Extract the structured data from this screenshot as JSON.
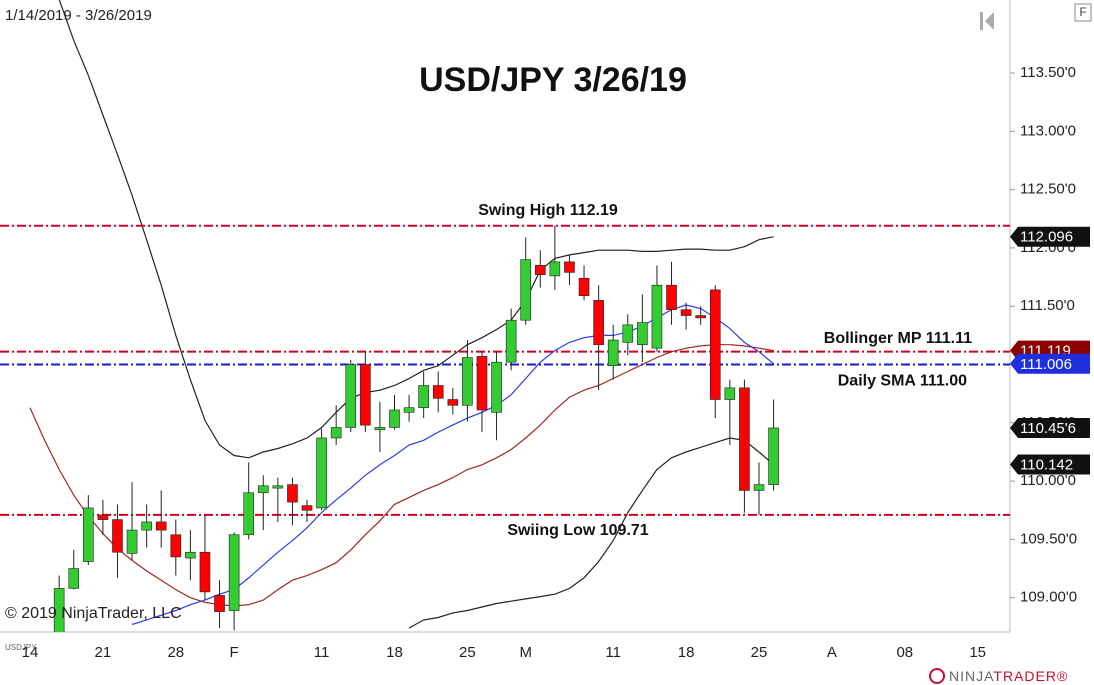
{
  "chart_data": {
    "type": "candlestick",
    "title": "USD/JPY 3/26/19",
    "date_range": "1/14/2019 - 3/26/2019",
    "copyright": "© 2019 NinjaTrader, LLC",
    "symbol": "USDJPY",
    "panel_button": "F",
    "brand": "NINJA",
    "brand_accent": "TRADER®",
    "up_color": "#33cc33",
    "down_color": "#ff0000",
    "ylim": [
      108.706,
      114.126
    ],
    "yticks": [
      {
        "value": 113.5,
        "label": "113.50'0"
      },
      {
        "value": 113,
        "label": "113.00'0"
      },
      {
        "value": 112.5,
        "label": "112.50'0"
      },
      {
        "value": 112,
        "label": "112.00'0"
      },
      {
        "value": 111.5,
        "label": "111.50'0"
      },
      {
        "value": 111,
        "label": "111.00'0"
      },
      {
        "value": 110.5,
        "label": "110.50'0"
      },
      {
        "value": 110,
        "label": "110.00'0"
      },
      {
        "value": 109.5,
        "label": "109.50'0"
      },
      {
        "value": 109,
        "label": "109.00'0"
      }
    ],
    "categories": [
      "14",
      null,
      null,
      null,
      null,
      "21",
      null,
      null,
      null,
      null,
      "28",
      null,
      null,
      null,
      "F",
      null,
      null,
      null,
      null,
      null,
      "11",
      null,
      null,
      null,
      null,
      "18",
      null,
      null,
      null,
      null,
      "25",
      null,
      null,
      null,
      "M",
      null,
      null,
      null,
      null,
      null,
      "11",
      null,
      null,
      null,
      null,
      "18",
      null,
      null,
      null,
      null,
      "25",
      null,
      null,
      null,
      null,
      "A",
      null,
      null,
      null,
      null,
      "08",
      null,
      null,
      null,
      null,
      "15"
    ],
    "ohlc": {
      "open": [
        null,
        null,
        108.65,
        109.08,
        109.31,
        109.71,
        109.67,
        109.38,
        109.58,
        109.65,
        109.54,
        109.34,
        109.39,
        109.02,
        108.89,
        109.54,
        109.9,
        109.94,
        109.97,
        109.79,
        109.77,
        110.37,
        110.46,
        111.0,
        110.44,
        110.46,
        110.59,
        110.63,
        110.82,
        110.7,
        110.65,
        111.07,
        110.59,
        111.02,
        111.38,
        111.85,
        111.76,
        111.88,
        111.74,
        111.55,
        110.99,
        111.19,
        111.17,
        111.14,
        111.68,
        111.47,
        111.42,
        111.64,
        110.7,
        110.8,
        109.92,
        109.97,
        null,
        null,
        null,
        null,
        null,
        null,
        null,
        null,
        null,
        null,
        null,
        null,
        null,
        null
      ],
      "high": [
        null,
        null,
        109.19,
        109.41,
        109.88,
        109.84,
        109.8,
        109.99,
        109.8,
        109.92,
        109.67,
        109.58,
        109.71,
        109.15,
        109.56,
        110.16,
        110.05,
        110.03,
        110.03,
        109.84,
        110.45,
        110.65,
        111.04,
        111.12,
        110.68,
        110.74,
        110.74,
        110.94,
        110.94,
        110.8,
        111.21,
        111.11,
        111.11,
        111.48,
        112.09,
        111.98,
        112.19,
        111.94,
        111.85,
        111.68,
        111.34,
        111.43,
        111.6,
        111.85,
        111.88,
        111.53,
        111.5,
        111.68,
        110.87,
        110.87,
        110.16,
        110.7,
        null,
        null,
        null,
        null,
        null,
        null,
        null,
        null,
        null,
        null,
        null,
        null,
        null,
        null
      ],
      "low": [
        null,
        null,
        108.55,
        109.07,
        109.28,
        109.54,
        109.17,
        109.32,
        109.43,
        109.43,
        109.19,
        109.15,
        108.98,
        108.74,
        108.72,
        109.5,
        109.58,
        109.65,
        109.62,
        109.65,
        109.75,
        110.31,
        110.42,
        110.42,
        110.25,
        110.44,
        110.51,
        110.54,
        110.59,
        110.57,
        110.51,
        110.42,
        110.35,
        110.95,
        111.34,
        111.66,
        111.64,
        111.68,
        111.55,
        110.78,
        110.87,
        111.08,
        111.02,
        111.11,
        111.34,
        111.3,
        111.34,
        110.54,
        110.31,
        109.73,
        109.71,
        109.92,
        null,
        null,
        null,
        null,
        null,
        null,
        null,
        null,
        null,
        null,
        null,
        null,
        null,
        null
      ],
      "close": [
        null,
        null,
        109.08,
        109.25,
        109.77,
        109.67,
        109.39,
        109.58,
        109.65,
        109.58,
        109.35,
        109.39,
        109.05,
        108.88,
        109.54,
        109.9,
        109.96,
        109.96,
        109.82,
        109.75,
        110.37,
        110.46,
        111.0,
        110.48,
        110.46,
        110.61,
        110.63,
        110.82,
        110.71,
        110.65,
        111.06,
        110.61,
        111.02,
        111.38,
        111.9,
        111.77,
        111.88,
        111.79,
        111.59,
        111.17,
        111.21,
        111.34,
        111.36,
        111.68,
        111.47,
        111.42,
        111.4,
        110.7,
        110.8,
        109.92,
        109.97,
        110.456,
        null,
        null,
        null,
        null,
        null,
        null,
        null,
        null,
        null,
        null,
        null,
        null,
        null,
        null
      ]
    },
    "lines": [
      {
        "color": "#222222",
        "values": [
          null,
          null,
          114.13,
          113.78,
          113.48,
          113.14,
          112.8,
          112.45,
          112.07,
          111.68,
          111.25,
          110.87,
          110.52,
          110.31,
          110.22,
          110.2,
          110.25,
          110.28,
          110.32,
          110.37,
          110.46,
          110.59,
          110.71,
          110.76,
          110.78,
          110.82,
          110.88,
          110.95,
          110.99,
          111.08,
          111.17,
          111.23,
          111.3,
          111.38,
          111.55,
          111.81,
          111.91,
          111.94,
          111.96,
          111.98,
          111.98,
          111.98,
          111.97,
          111.97,
          111.98,
          111.99,
          111.99,
          111.98,
          111.98,
          112.01,
          112.07,
          112.096,
          null,
          null,
          null,
          null,
          null,
          null,
          null,
          null,
          null,
          null,
          null,
          null,
          null,
          null
        ]
      },
      {
        "color": "#222222",
        "values": [
          null,
          null,
          null,
          null,
          null,
          null,
          null,
          null,
          null,
          null,
          null,
          null,
          null,
          null,
          null,
          null,
          null,
          null,
          null,
          null,
          null,
          null,
          null,
          null,
          null,
          null,
          108.74,
          108.81,
          108.83,
          108.87,
          108.89,
          108.92,
          108.95,
          108.97,
          108.99,
          109.01,
          109.03,
          109.08,
          109.17,
          109.31,
          109.49,
          109.73,
          109.92,
          110.1,
          110.2,
          110.25,
          110.29,
          110.33,
          110.37,
          110.35,
          110.25,
          110.142,
          null,
          null,
          null,
          null,
          null,
          null,
          null,
          null,
          null,
          null,
          null,
          null,
          null,
          null
        ]
      },
      {
        "color": "#a0281e",
        "values": [
          110.63,
          110.35,
          110.1,
          109.88,
          109.7,
          109.55,
          109.42,
          109.32,
          109.23,
          109.15,
          109.07,
          109.0,
          108.96,
          108.94,
          108.93,
          108.94,
          108.98,
          109.07,
          109.15,
          109.19,
          109.24,
          109.3,
          109.41,
          109.54,
          109.66,
          109.8,
          109.86,
          109.92,
          109.97,
          110.03,
          110.1,
          110.14,
          110.2,
          110.27,
          110.37,
          110.48,
          110.61,
          110.72,
          110.78,
          110.82,
          110.88,
          110.94,
          111.0,
          111.06,
          111.11,
          111.14,
          111.16,
          111.17,
          111.17,
          111.16,
          111.14,
          111.119,
          null,
          null,
          null,
          null,
          null,
          null,
          null,
          null,
          null,
          null,
          null,
          null,
          null,
          null
        ]
      },
      {
        "color": "#2a3cf0",
        "values": [
          null,
          null,
          null,
          null,
          null,
          null,
          null,
          108.77,
          108.81,
          108.85,
          108.89,
          108.94,
          108.98,
          109.03,
          109.07,
          109.17,
          109.28,
          109.39,
          109.49,
          109.6,
          109.73,
          109.84,
          109.94,
          110.05,
          110.14,
          110.22,
          110.31,
          110.35,
          110.42,
          110.48,
          110.54,
          110.59,
          110.65,
          110.74,
          110.88,
          111.02,
          111.12,
          111.19,
          111.23,
          111.25,
          111.25,
          111.28,
          111.33,
          111.4,
          111.47,
          111.51,
          111.48,
          111.4,
          111.31,
          111.19,
          111.11,
          111.006,
          null,
          null,
          null,
          null,
          null,
          null,
          null,
          null,
          null,
          null,
          null,
          null,
          null,
          null
        ]
      }
    ],
    "hlines": [
      {
        "label": "Swing High 112.19",
        "value": 112.19,
        "color": "#d2001e"
      },
      {
        "label": "Bollinger MP 111.11",
        "value": 111.11,
        "color": "#d2001e"
      },
      {
        "label": "Daily SMA 111.00",
        "value": 111.0,
        "color": "#1a1ad0"
      },
      {
        "label": "Swiing Low 109.71",
        "value": 109.71,
        "color": "#d2001e"
      }
    ],
    "price_labels": [
      {
        "value": 112.096,
        "color": "#111111"
      },
      {
        "value": 111.119,
        "color": "#8b0000"
      },
      {
        "value": 111.006,
        "color": "#1f2fe0"
      },
      {
        "value": 110.456,
        "label": "110.45'6",
        "color": "#111111"
      },
      {
        "value": 110.142,
        "color": "#111111"
      }
    ]
  }
}
